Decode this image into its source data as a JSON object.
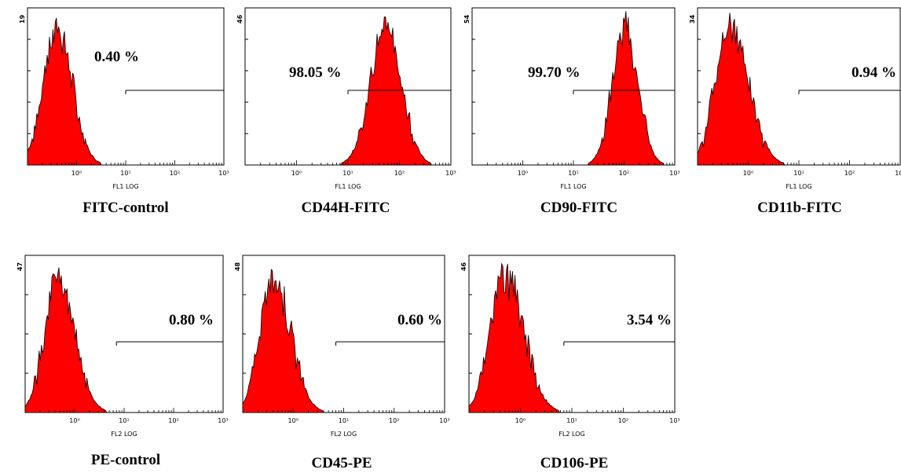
{
  "colors": {
    "fill": "#ff0000",
    "outline": "#000000",
    "frame": "#000000",
    "gate": "#000000"
  },
  "chart_data": [
    {
      "type": "area",
      "caption": "FITC-control",
      "ymax_label": "19",
      "xlabel": "FL1 LOG",
      "gate_label": "0.40 %",
      "gate_from": 10,
      "gate_to": 1000,
      "xlim": [
        0.1,
        1000
      ],
      "x_ticks": [
        "10⁰",
        "10¹",
        "10²",
        "10³"
      ],
      "peak": 0.4,
      "spread": 0.28,
      "skew": 1.1,
      "ticks": 4
    },
    {
      "type": "area",
      "caption": "CD44H-FITC",
      "ymax_label": "46",
      "xlabel": "FL1 LOG",
      "gate_label": "98.05 %",
      "gate_from": 10,
      "gate_to": 1000,
      "xlim": [
        0.1,
        1000
      ],
      "x_ticks": [
        "10⁰",
        "10¹",
        "10²",
        "10³"
      ],
      "peak": 55,
      "spread": 0.3,
      "skew": 1.0,
      "ticks": 4
    },
    {
      "type": "area",
      "caption": "CD90-FITC",
      "ymax_label": "54",
      "xlabel": "FL1 LOG",
      "gate_label": "99.70 %",
      "gate_from": 10,
      "gate_to": 1000,
      "xlim": [
        0.1,
        1000
      ],
      "x_ticks": [
        "10⁰",
        "10¹",
        "10²",
        "10³"
      ],
      "peak": 100,
      "spread": 0.24,
      "skew": 1.1,
      "ticks": 4
    },
    {
      "type": "area",
      "caption": "CD11b-FITC",
      "ymax_label": "34",
      "xlabel": "FL1 LOG",
      "gate_label": "0.94 %",
      "gate_from": 10,
      "gate_to": 1000,
      "xlim": [
        0.1,
        1000
      ],
      "x_ticks": [
        "10⁰",
        "10¹",
        "10²",
        "10³"
      ],
      "peak": 0.45,
      "spread": 0.3,
      "skew": 1.2,
      "ticks": 4
    },
    {
      "type": "area",
      "caption": "PE-control",
      "ymax_label": "47",
      "xlabel": "FL2 LOG",
      "gate_label": "0.80 %",
      "gate_from": 7,
      "gate_to": 1000,
      "xlim": [
        0.1,
        1000
      ],
      "x_ticks": [
        "10⁰",
        "10¹",
        "10²",
        "10³"
      ],
      "peak": 0.45,
      "spread": 0.26,
      "skew": 1.3,
      "ticks": 3
    },
    {
      "type": "area",
      "caption": "CD45-PE",
      "ymax_label": "48",
      "xlabel": "FL2 LOG",
      "gate_label": "0.60 %",
      "gate_from": 7,
      "gate_to": 1000,
      "xlim": [
        0.1,
        1000
      ],
      "x_ticks": [
        "10⁰",
        "10¹",
        "10²",
        "10³"
      ],
      "peak": 0.4,
      "spread": 0.26,
      "skew": 1.3,
      "ticks": 3
    },
    {
      "type": "area",
      "caption": "CD106-PE",
      "ymax_label": "46",
      "xlabel": "FL2 LOG",
      "gate_label": "3.54 %",
      "gate_from": 7,
      "gate_to": 1000,
      "xlim": [
        0.1,
        1000
      ],
      "x_ticks": [
        "10⁰",
        "10¹",
        "10²",
        "10³"
      ],
      "peak": 0.5,
      "spread": 0.28,
      "skew": 1.3,
      "ticks": 3
    }
  ]
}
